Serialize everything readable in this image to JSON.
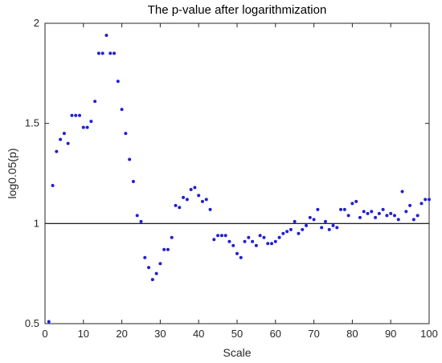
{
  "chart_data": {
    "type": "scatter",
    "title": "The p-value after logarithmization",
    "xlabel": "Scale",
    "ylabel": "log0.05(p)",
    "xlim": [
      0,
      100
    ],
    "ylim": [
      0.5,
      2
    ],
    "xticks": [
      0,
      10,
      20,
      30,
      40,
      50,
      60,
      70,
      80,
      90,
      100
    ],
    "yticks": [
      0.5,
      1,
      1.5,
      2
    ],
    "xtick_labels": [
      "0",
      "10",
      "20",
      "30",
      "40",
      "50",
      "60",
      "70",
      "80",
      "90",
      "100"
    ],
    "ytick_labels": [
      "0.5",
      "1",
      "1.5",
      "2"
    ],
    "grid": false,
    "reference_line": {
      "y": 1,
      "color": "#000000"
    },
    "series": [
      {
        "color": "#1f1fd6",
        "marker": "dot",
        "x": [
          1,
          2,
          3,
          4,
          5,
          6,
          7,
          8,
          9,
          10,
          11,
          12,
          13,
          14,
          15,
          16,
          17,
          18,
          19,
          20,
          21,
          22,
          23,
          24,
          25,
          26,
          27,
          28,
          29,
          30,
          31,
          32,
          33,
          34,
          35,
          36,
          37,
          38,
          39,
          40,
          41,
          42,
          43,
          44,
          45,
          46,
          47,
          48,
          49,
          50,
          51,
          52,
          53,
          54,
          55,
          56,
          57,
          58,
          59,
          60,
          61,
          62,
          63,
          64,
          65,
          66,
          67,
          68,
          69,
          70,
          71,
          72,
          73,
          74,
          75,
          76,
          77,
          78,
          79,
          80,
          81,
          82,
          83,
          84,
          85,
          86,
          87,
          88,
          89,
          90,
          91,
          92,
          93,
          94,
          95,
          96,
          97,
          98,
          99,
          100
        ],
        "y": [
          0.51,
          1.19,
          1.36,
          1.42,
          1.45,
          1.4,
          1.54,
          1.54,
          1.54,
          1.48,
          1.48,
          1.51,
          1.61,
          1.85,
          1.85,
          1.94,
          1.85,
          1.85,
          1.71,
          1.57,
          1.45,
          1.32,
          1.21,
          1.04,
          1.01,
          0.83,
          0.78,
          0.72,
          0.75,
          0.8,
          0.87,
          0.87,
          0.93,
          1.09,
          1.08,
          1.13,
          1.12,
          1.17,
          1.18,
          1.14,
          1.11,
          1.12,
          1.07,
          0.92,
          0.94,
          0.94,
          0.94,
          0.91,
          0.89,
          0.85,
          0.83,
          0.91,
          0.93,
          0.91,
          0.89,
          0.94,
          0.93,
          0.9,
          0.9,
          0.91,
          0.93,
          0.95,
          0.96,
          0.97,
          1.01,
          0.95,
          0.97,
          0.99,
          1.03,
          1.02,
          1.07,
          0.98,
          1.01,
          0.97,
          0.99,
          0.98,
          1.07,
          1.07,
          1.04,
          1.1,
          1.11,
          1.03,
          1.06,
          1.05,
          1.06,
          1.03,
          1.05,
          1.07,
          1.04,
          1.05,
          1.04,
          1.02,
          1.16,
          1.06,
          1.09,
          1.02,
          1.04,
          1.1,
          1.12,
          1.12
        ]
      }
    ]
  }
}
